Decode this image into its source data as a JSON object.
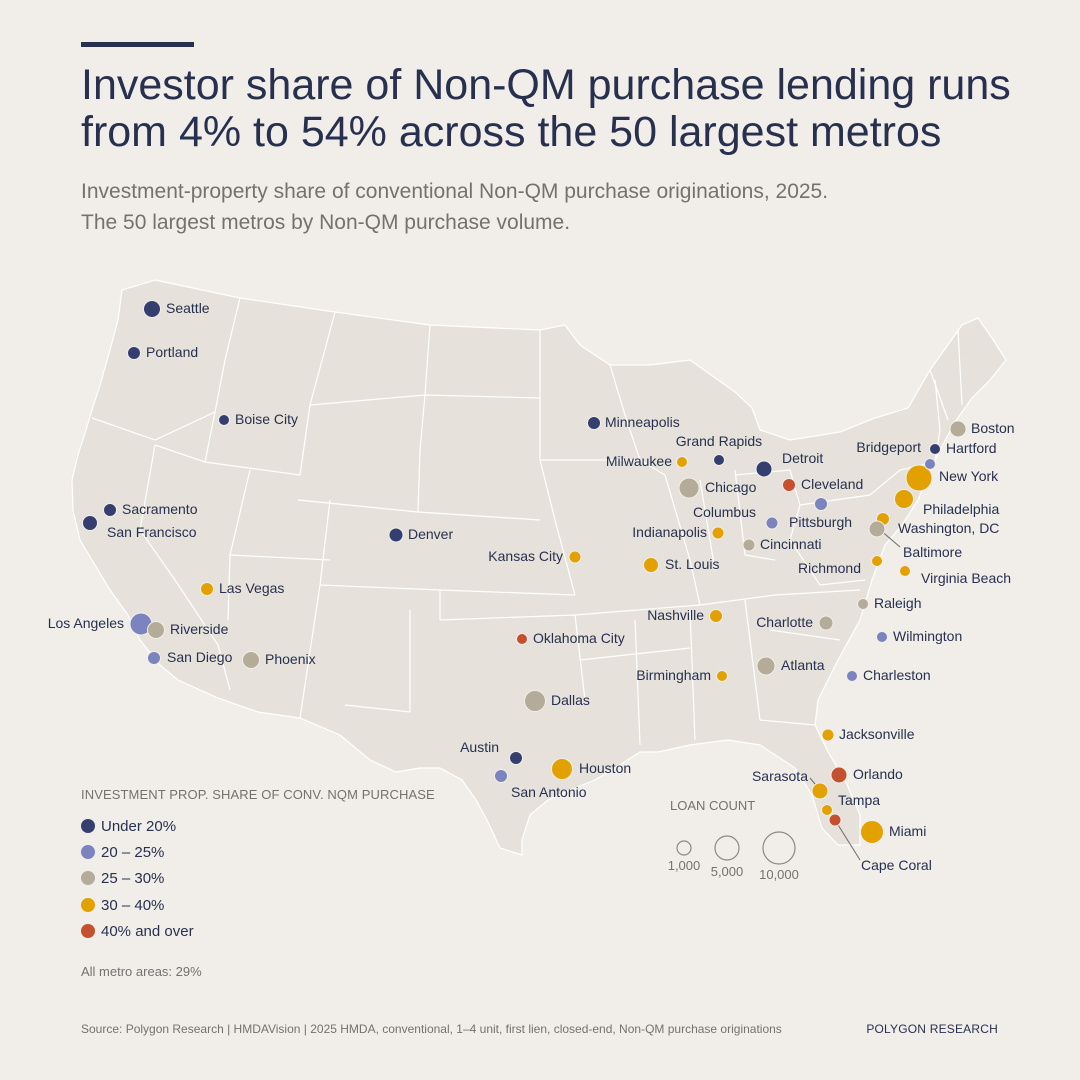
{
  "header": {
    "title": "Investor share of Non-QM purchase lending runs from 4% to 54% across the 50 largest metros",
    "subtitle_line1": "Investment-property share of conventional Non-QM purchase originations, 2025.",
    "subtitle_line2": "The 50 largest metros by Non-QM purchase volume."
  },
  "legend": {
    "title": "INVESTMENT PROP. SHARE OF CONV. NQM PURCHASE",
    "items": [
      {
        "label": "Under 20%",
        "color": "#343f70"
      },
      {
        "label": "20 – 25%",
        "color": "#7b84bf"
      },
      {
        "label": "25 – 30%",
        "color": "#b4ab98"
      },
      {
        "label": "30 – 40%",
        "color": "#e3a100"
      },
      {
        "label": "40% and over",
        "color": "#c4502f"
      }
    ],
    "all_metro": "All metro areas: 29%"
  },
  "size_legend": {
    "title": "LOAN COUNT",
    "labels": [
      "1,000",
      "5,000",
      "10,000"
    ]
  },
  "footer": {
    "source": "Source: Polygon Research   |   HMDAVision   |   2025 HMDA, conventional, 1–4 unit, first lien, closed-end, Non-QM purchase originations",
    "brand": "POLYGON RESEARCH"
  },
  "cities": [
    {
      "name": "Seattle",
      "band": 0
    },
    {
      "name": "Portland",
      "band": 0
    },
    {
      "name": "Boise City",
      "band": 0
    },
    {
      "name": "Sacramento",
      "band": 0
    },
    {
      "name": "San Francisco",
      "band": 0
    },
    {
      "name": "Las Vegas",
      "band": 3
    },
    {
      "name": "Los Angeles",
      "band": 1
    },
    {
      "name": "Riverside",
      "band": 2
    },
    {
      "name": "San Diego",
      "band": 1
    },
    {
      "name": "Phoenix",
      "band": 2
    },
    {
      "name": "Denver",
      "band": 0
    },
    {
      "name": "Minneapolis",
      "band": 0
    },
    {
      "name": "Kansas City",
      "band": 3
    },
    {
      "name": "Oklahoma City",
      "band": 4
    },
    {
      "name": "Dallas",
      "band": 2
    },
    {
      "name": "Austin",
      "band": 0
    },
    {
      "name": "San Antonio",
      "band": 1
    },
    {
      "name": "Houston",
      "band": 3
    },
    {
      "name": "Milwaukee",
      "band": 3
    },
    {
      "name": "Chicago",
      "band": 2
    },
    {
      "name": "Grand Rapids",
      "band": 0
    },
    {
      "name": "Detroit",
      "band": 0
    },
    {
      "name": "Cleveland",
      "band": 4
    },
    {
      "name": "Columbus",
      "band": 1
    },
    {
      "name": "Indianapolis",
      "band": 3
    },
    {
      "name": "Pittsburgh",
      "band": 1
    },
    {
      "name": "Cincinnati",
      "band": 2
    },
    {
      "name": "St. Louis",
      "band": 3
    },
    {
      "name": "Nashville",
      "band": 3
    },
    {
      "name": "Birmingham",
      "band": 3
    },
    {
      "name": "Atlanta",
      "band": 2
    },
    {
      "name": "Charlotte",
      "band": 2
    },
    {
      "name": "Raleigh",
      "band": 2
    },
    {
      "name": "Wilmington",
      "band": 1
    },
    {
      "name": "Charleston",
      "band": 1
    },
    {
      "name": "Richmond",
      "band": 3
    },
    {
      "name": "Virginia Beach",
      "band": 3
    },
    {
      "name": "Washington, DC",
      "band": 3
    },
    {
      "name": "Baltimore",
      "band": 2
    },
    {
      "name": "Philadelphia",
      "band": 3
    },
    {
      "name": "New York",
      "band": 3
    },
    {
      "name": "Bridgeport",
      "band": 1
    },
    {
      "name": "Hartford",
      "band": 0
    },
    {
      "name": "Boston",
      "band": 2
    },
    {
      "name": "Jacksonville",
      "band": 3
    },
    {
      "name": "Orlando",
      "band": 4
    },
    {
      "name": "Sarasota",
      "band": 3
    },
    {
      "name": "Tampa",
      "band": 3
    },
    {
      "name": "Cape Coral",
      "band": 4
    },
    {
      "name": "Miami",
      "band": 3
    }
  ]
}
